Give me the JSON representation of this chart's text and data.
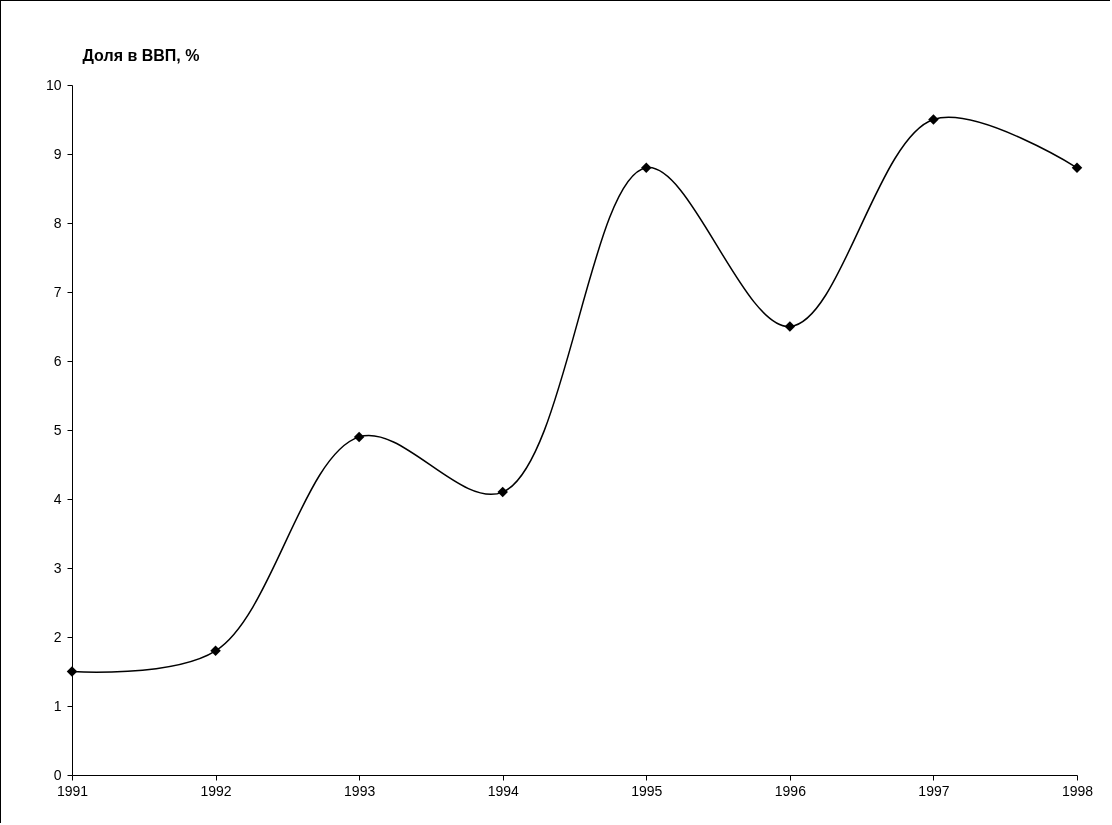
{
  "chart_data": {
    "type": "line",
    "ylabel": "Доля в ВВП, %",
    "x": [
      1991,
      1992,
      1993,
      1994,
      1995,
      1996,
      1997,
      1998
    ],
    "series": [
      {
        "color": "#000000",
        "values": [
          1.5,
          1.8,
          4.9,
          4.1,
          8.8,
          6.5,
          9.5,
          8.8
        ]
      }
    ],
    "xlim": [
      1991,
      1998
    ],
    "xticks": [
      1991,
      1992,
      1993,
      1994,
      1995,
      1996,
      1997,
      1998
    ],
    "ylim": [
      0,
      10
    ],
    "yticks": [
      0,
      1,
      2,
      3,
      4,
      5,
      6,
      7,
      8,
      9,
      10
    ],
    "grid": false,
    "marker": "diamond",
    "line_style": "solid"
  }
}
